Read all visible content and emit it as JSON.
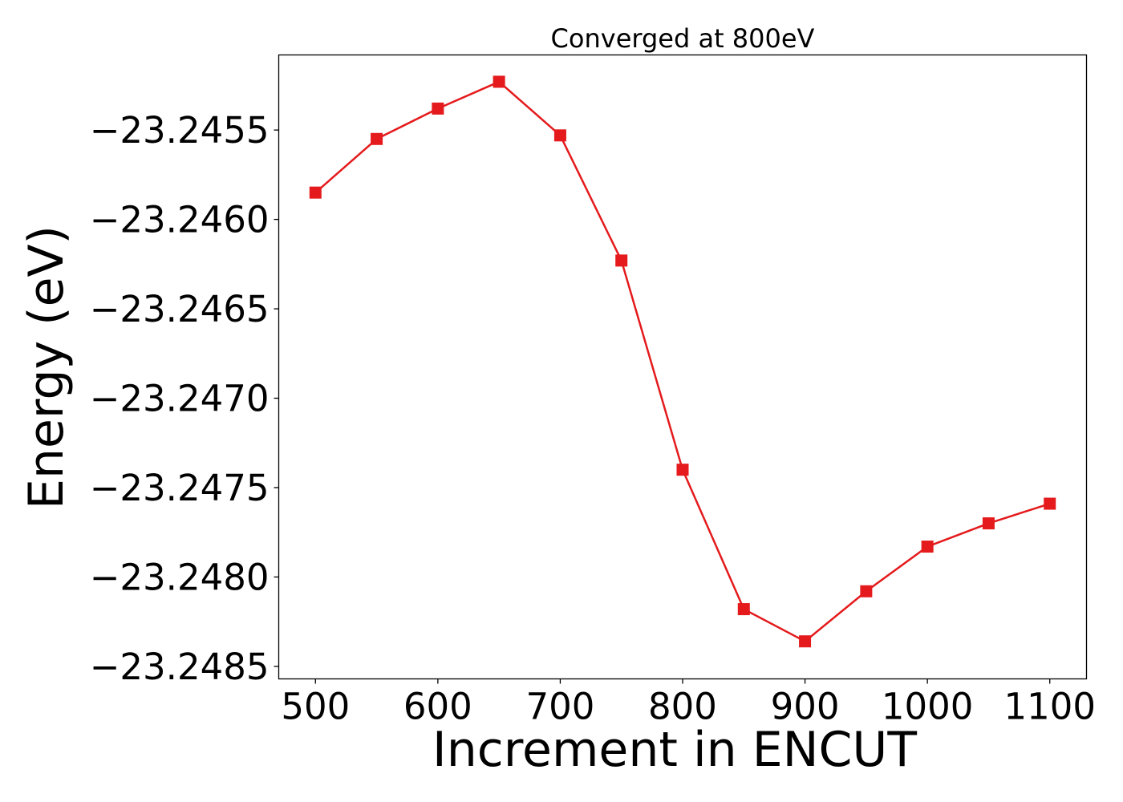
{
  "chart_data": {
    "type": "line",
    "title": "Converged at 800eV",
    "xlabel": "Increment in ENCUT",
    "ylabel": "Energy (eV)",
    "x": [
      500,
      550,
      600,
      650,
      700,
      750,
      800,
      850,
      900,
      950,
      1000,
      1050,
      1100
    ],
    "series": [
      {
        "values": [
          -23.24585,
          -23.24555,
          -23.24538,
          -23.24523,
          -23.24553,
          -23.24623,
          -23.2474,
          -23.24818,
          -23.24836,
          -23.24808,
          -23.24783,
          -23.2477,
          -23.24759
        ],
        "color": "#e41a1c",
        "marker": "square"
      }
    ],
    "xticks": [
      500,
      600,
      700,
      800,
      900,
      1000,
      1100
    ],
    "xtick_labels": [
      "500",
      "600",
      "700",
      "800",
      "900",
      "1000",
      "1100"
    ],
    "yticks": [
      -23.2485,
      -23.248,
      -23.2475,
      -23.247,
      -23.2465,
      -23.246,
      -23.2455
    ],
    "ytick_labels": [
      "−23.2485",
      "−23.2480",
      "−23.2475",
      "−23.2470",
      "−23.2465",
      "−23.2460",
      "−23.2455"
    ],
    "xlim": [
      470,
      1130
    ],
    "ylim": [
      -23.24857,
      -23.24508
    ],
    "grid": false,
    "legend": false
  }
}
